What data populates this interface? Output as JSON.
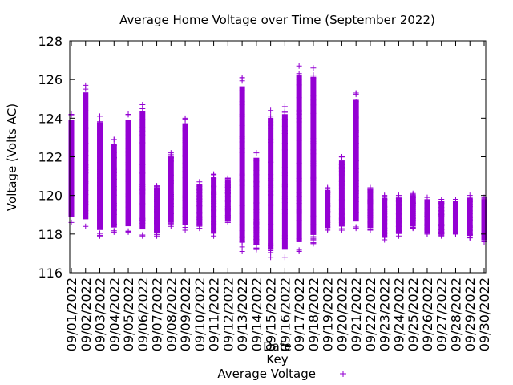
{
  "chart_data": {
    "type": "scatter",
    "title": "Average Home Voltage over Time (September 2022)",
    "xlabel": "Date",
    "ylabel": "Voltage (Volts AC)",
    "ylim": [
      116,
      128
    ],
    "yticks": [
      116,
      118,
      120,
      122,
      124,
      126,
      128
    ],
    "grid": false,
    "legend": {
      "title": "Key",
      "position": "bottom-center",
      "entries": [
        "Average Voltage"
      ]
    },
    "series_color": "#9400d3",
    "categories": [
      "09/01/2022",
      "09/02/2022",
      "09/03/2022",
      "09/04/2022",
      "09/05/2022",
      "09/06/2022",
      "09/07/2022",
      "09/08/2022",
      "09/09/2022",
      "09/10/2022",
      "09/11/2022",
      "09/12/2022",
      "09/13/2022",
      "09/14/2022",
      "09/15/2022",
      "09/16/2022",
      "09/17/2022",
      "09/18/2022",
      "09/19/2022",
      "09/20/2022",
      "09/21/2022",
      "09/22/2022",
      "09/23/2022",
      "09/24/2022",
      "09/25/2022",
      "09/26/2022",
      "09/27/2022",
      "09/28/2022",
      "09/29/2022",
      "09/30/2022"
    ],
    "series": [
      {
        "name": "Average Voltage",
        "daily_range": [
          {
            "date": "09/01/2022",
            "min": 118.6,
            "max": 124.2
          },
          {
            "date": "09/02/2022",
            "min": 118.4,
            "max": 125.7
          },
          {
            "date": "09/03/2022",
            "min": 117.9,
            "max": 124.1
          },
          {
            "date": "09/04/2022",
            "min": 118.1,
            "max": 122.9
          },
          {
            "date": "09/05/2022",
            "min": 118.1,
            "max": 124.2
          },
          {
            "date": "09/06/2022",
            "min": 117.9,
            "max": 124.7
          },
          {
            "date": "09/07/2022",
            "min": 117.9,
            "max": 120.5
          },
          {
            "date": "09/08/2022",
            "min": 118.4,
            "max": 122.2
          },
          {
            "date": "09/09/2022",
            "min": 118.2,
            "max": 124.0
          },
          {
            "date": "09/10/2022",
            "min": 118.3,
            "max": 120.7
          },
          {
            "date": "09/11/2022",
            "min": 117.9,
            "max": 121.1
          },
          {
            "date": "09/12/2022",
            "min": 118.6,
            "max": 120.9
          },
          {
            "date": "09/13/2022",
            "min": 117.1,
            "max": 126.1
          },
          {
            "date": "09/14/2022",
            "min": 117.2,
            "max": 122.2
          },
          {
            "date": "09/15/2022",
            "min": 116.8,
            "max": 124.4
          },
          {
            "date": "09/16/2022",
            "min": 116.8,
            "max": 124.6
          },
          {
            "date": "09/17/2022",
            "min": 117.1,
            "max": 126.7
          },
          {
            "date": "09/18/2022",
            "min": 117.5,
            "max": 126.6
          },
          {
            "date": "09/19/2022",
            "min": 118.2,
            "max": 120.4
          },
          {
            "date": "09/20/2022",
            "min": 118.2,
            "max": 122.0
          },
          {
            "date": "09/21/2022",
            "min": 118.3,
            "max": 125.3
          },
          {
            "date": "09/22/2022",
            "min": 118.2,
            "max": 120.4
          },
          {
            "date": "09/23/2022",
            "min": 117.7,
            "max": 120.0
          },
          {
            "date": "09/24/2022",
            "min": 117.9,
            "max": 120.0
          },
          {
            "date": "09/25/2022",
            "min": 118.3,
            "max": 120.1
          },
          {
            "date": "09/26/2022",
            "min": 118.0,
            "max": 119.9
          },
          {
            "date": "09/27/2022",
            "min": 117.9,
            "max": 119.8
          },
          {
            "date": "09/28/2022",
            "min": 118.0,
            "max": 119.8
          },
          {
            "date": "09/29/2022",
            "min": 117.8,
            "max": 120.0
          },
          {
            "date": "09/30/2022",
            "min": 117.6,
            "max": 119.9
          }
        ]
      }
    ]
  }
}
